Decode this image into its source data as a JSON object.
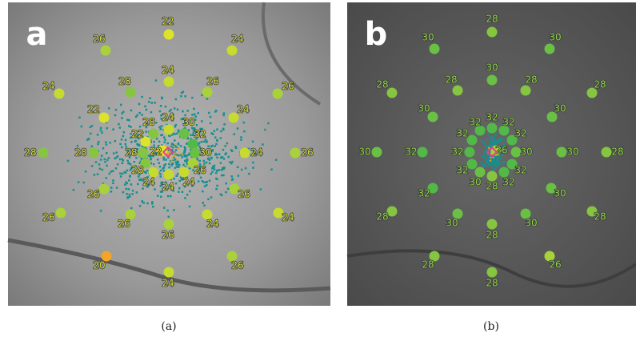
{
  "panels": [
    {
      "letter": "a",
      "caption": "(a)",
      "points": [
        {
          "value": 22,
          "color": "#dde22a"
        },
        {
          "value": 26,
          "color": "#a9d13a"
        },
        {
          "value": 24,
          "color": "#c6da30"
        },
        {
          "value": 24,
          "color": "#c6da30"
        },
        {
          "value": 28,
          "color": "#86c540"
        },
        {
          "value": 26,
          "color": "#a9d13a"
        },
        {
          "value": 24,
          "color": "#c6da30"
        },
        {
          "value": 26,
          "color": "#a9d13a"
        },
        {
          "value": 22,
          "color": "#dde22a"
        },
        {
          "value": 24,
          "color": "#c6da30"
        },
        {
          "value": 28,
          "color": "#86c540"
        },
        {
          "value": 28,
          "color": "#86c540"
        },
        {
          "value": 24,
          "color": "#c6da30"
        },
        {
          "value": 26,
          "color": "#a9d13a"
        },
        {
          "value": 26,
          "color": "#a9d13a"
        },
        {
          "value": 26,
          "color": "#a9d13a"
        },
        {
          "value": 26,
          "color": "#a9d13a"
        },
        {
          "value": 24,
          "color": "#c6da30"
        },
        {
          "value": 26,
          "color": "#a9d13a"
        },
        {
          "value": 24,
          "color": "#c6da30"
        },
        {
          "value": 26,
          "color": "#a9d13a"
        },
        {
          "value": 20,
          "color": "#f2a526"
        },
        {
          "value": 26,
          "color": "#a9d13a"
        },
        {
          "value": 24,
          "color": "#c6da30"
        },
        {
          "value": 24,
          "color": "#c6da30"
        },
        {
          "value": 30,
          "color": "#6abf45"
        },
        {
          "value": 32,
          "color": "#52b848"
        },
        {
          "value": 30,
          "color": "#6abf45"
        },
        {
          "value": 26,
          "color": "#a9d13a"
        },
        {
          "value": 24,
          "color": "#c6da30"
        },
        {
          "value": 24,
          "color": "#c6da30"
        },
        {
          "value": 24,
          "color": "#c6da30"
        },
        {
          "value": 28,
          "color": "#86c540"
        },
        {
          "value": 28,
          "color": "#86c540"
        },
        {
          "value": 22,
          "color": "#dde22a"
        },
        {
          "value": 28,
          "color": "#86c540"
        },
        {
          "value": 22,
          "color": "#dde22a"
        }
      ]
    },
    {
      "letter": "b",
      "caption": "(b)",
      "points": [
        {
          "value": 28,
          "color": "#86c540"
        },
        {
          "value": 30,
          "color": "#6abf45"
        },
        {
          "value": 30,
          "color": "#6abf45"
        },
        {
          "value": 30,
          "color": "#6abf45"
        },
        {
          "value": 28,
          "color": "#86c540"
        },
        {
          "value": 28,
          "color": "#86c540"
        },
        {
          "value": 28,
          "color": "#86c540"
        },
        {
          "value": 28,
          "color": "#86c540"
        },
        {
          "value": 30,
          "color": "#6abf45"
        },
        {
          "value": 30,
          "color": "#6abf45"
        },
        {
          "value": 30,
          "color": "#6abf45"
        },
        {
          "value": 32,
          "color": "#52b848"
        },
        {
          "value": 30,
          "color": "#6abf45"
        },
        {
          "value": 28,
          "color": "#86c540"
        },
        {
          "value": 32,
          "color": "#52b848"
        },
        {
          "value": 30,
          "color": "#6abf45"
        },
        {
          "value": 28,
          "color": "#86c540"
        },
        {
          "value": 28,
          "color": "#86c540"
        },
        {
          "value": 30,
          "color": "#6abf45"
        },
        {
          "value": 30,
          "color": "#6abf45"
        },
        {
          "value": 28,
          "color": "#86c540"
        },
        {
          "value": 28,
          "color": "#86c540"
        },
        {
          "value": 26,
          "color": "#a9d13a"
        },
        {
          "value": 28,
          "color": "#86c540"
        },
        {
          "value": 32,
          "color": "#52b848"
        },
        {
          "value": 32,
          "color": "#52b848"
        },
        {
          "value": 32,
          "color": "#52b848"
        },
        {
          "value": 30,
          "color": "#6abf45"
        },
        {
          "value": 32,
          "color": "#52b848"
        },
        {
          "value": 32,
          "color": "#52b848"
        },
        {
          "value": 28,
          "color": "#86c540"
        },
        {
          "value": 30,
          "color": "#6abf45"
        },
        {
          "value": 32,
          "color": "#52b848"
        },
        {
          "value": 32,
          "color": "#52b848"
        },
        {
          "value": 32,
          "color": "#52b848"
        },
        {
          "value": 32,
          "color": "#52b848"
        },
        {
          "value": 26,
          "color": "#a9d13a"
        }
      ]
    }
  ]
}
